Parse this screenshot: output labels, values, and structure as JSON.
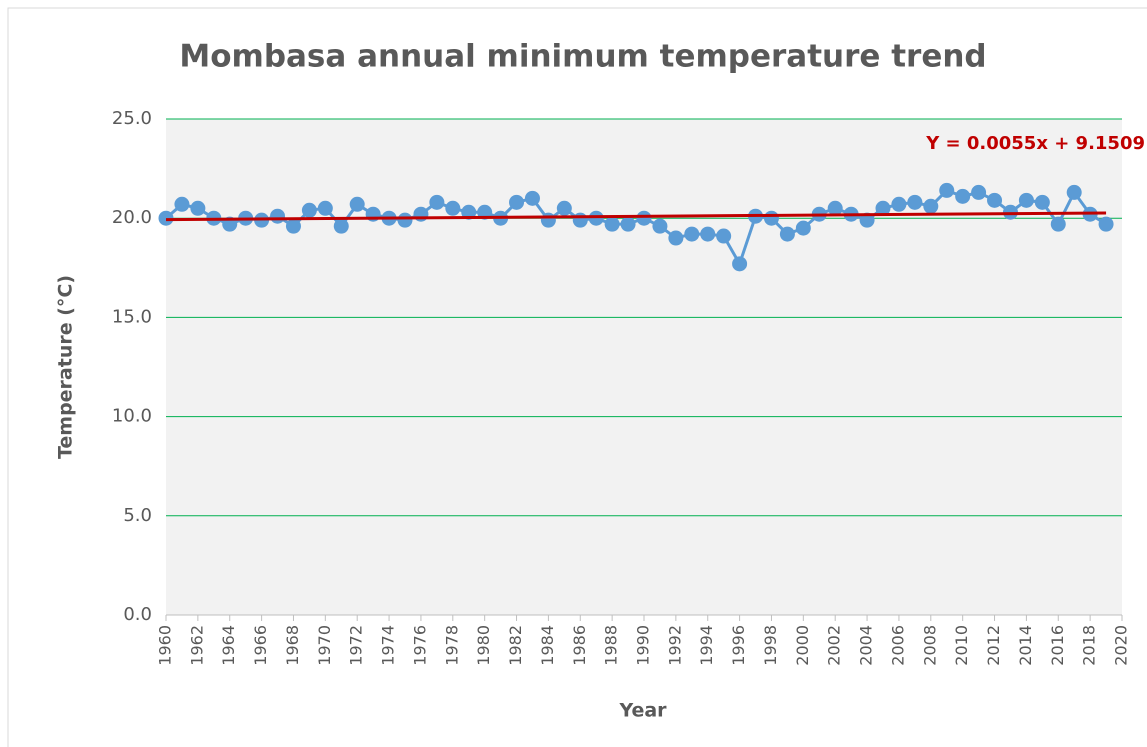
{
  "chart_data": {
    "type": "line",
    "title": "Mombasa annual minimum temperature trend",
    "x_label": "Year",
    "y_label": "Temperature (°C)",
    "annotation": "Y = 0.0055x + 9.1509",
    "x": [
      1960,
      1961,
      1962,
      1963,
      1964,
      1965,
      1966,
      1967,
      1968,
      1969,
      1970,
      1971,
      1972,
      1973,
      1974,
      1975,
      1976,
      1977,
      1978,
      1979,
      1980,
      1981,
      1982,
      1983,
      1984,
      1985,
      1986,
      1987,
      1988,
      1989,
      1990,
      1991,
      1992,
      1993,
      1994,
      1995,
      1996,
      1997,
      1998,
      1999,
      2000,
      2001,
      2002,
      2003,
      2004,
      2005,
      2006,
      2007,
      2008,
      2009,
      2010,
      2011,
      2012,
      2013,
      2014,
      2015,
      2016,
      2017,
      2018,
      2019
    ],
    "series": [
      {
        "color": "#5b9bd5",
        "values": [
          20.0,
          20.7,
          20.5,
          20.0,
          19.7,
          20.0,
          19.9,
          20.1,
          19.6,
          20.4,
          20.5,
          19.6,
          20.7,
          20.2,
          20.0,
          19.9,
          20.2,
          20.8,
          20.5,
          20.3,
          20.3,
          20.0,
          20.8,
          21.0,
          19.9,
          20.5,
          19.9,
          20.0,
          19.7,
          19.7,
          20.0,
          19.6,
          19.0,
          19.2,
          19.2,
          19.1,
          17.7,
          20.1,
          20.0,
          19.2,
          19.5,
          20.2,
          20.5,
          20.2,
          19.9,
          20.5,
          20.7,
          20.8,
          20.6,
          21.4,
          21.1,
          21.3,
          20.9,
          20.3,
          20.9,
          20.8,
          19.7,
          21.3,
          20.2,
          19.7
        ]
      }
    ],
    "trendline": {
      "color": "#c00000",
      "x": [
        1960,
        2019
      ],
      "values": [
        19.93,
        20.26
      ]
    },
    "xlim": [
      1960,
      2020
    ],
    "xticks": [
      1960,
      1962,
      1964,
      1966,
      1968,
      1970,
      1972,
      1974,
      1976,
      1978,
      1980,
      1982,
      1984,
      1986,
      1988,
      1990,
      1992,
      1994,
      1996,
      1998,
      2000,
      2002,
      2004,
      2006,
      2008,
      2010,
      2012,
      2014,
      2016,
      2018,
      2020
    ],
    "ylim": [
      0,
      25
    ],
    "yticks": [
      {
        "value": 0,
        "label": "0.0"
      },
      {
        "value": 5,
        "label": "5.0"
      },
      {
        "value": 10,
        "label": "10.0"
      },
      {
        "value": 15,
        "label": "15.0"
      },
      {
        "value": 20,
        "label": "20.0"
      },
      {
        "value": 25,
        "label": "25.0"
      }
    ],
    "grid": true,
    "grid_color": "#00b050"
  }
}
